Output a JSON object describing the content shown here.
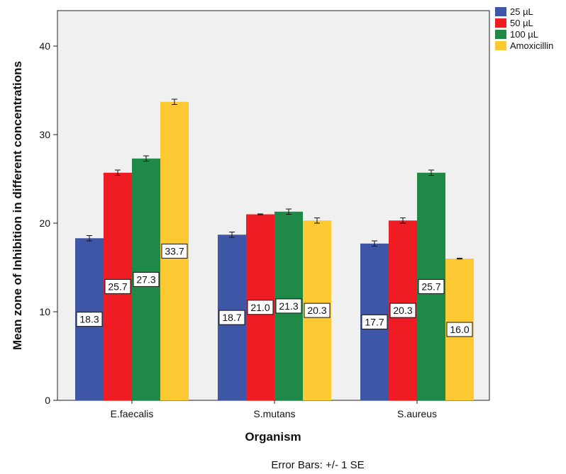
{
  "chart_data": {
    "type": "bar",
    "xlabel": "Organism",
    "ylabel": "Mean zone of Inhibition in different concentrations",
    "categories": [
      "E.faecalis",
      "S.mutans",
      "S.aureus"
    ],
    "ylim": [
      0,
      45
    ],
    "yticks": [
      "0",
      "10",
      "20",
      "30",
      "40"
    ],
    "series": [
      {
        "name": "25 µL",
        "color": "#3f56a6",
        "values": [
          18.3,
          18.7,
          17.7
        ],
        "labels": [
          "18.3",
          "18.7",
          "17.7"
        ],
        "se": [
          0.3,
          0.3,
          0.3
        ]
      },
      {
        "name": "50 µL",
        "color": "#f01c24",
        "values": [
          25.7,
          21.0,
          20.3
        ],
        "labels": [
          "25.7",
          "21.0",
          "20.3"
        ],
        "se": [
          0.3,
          0.05,
          0.3
        ]
      },
      {
        "name": "100 µL",
        "color": "#1f8a47",
        "values": [
          27.3,
          21.3,
          25.7
        ],
        "labels": [
          "27.3",
          "21.3",
          "25.7"
        ],
        "se": [
          0.3,
          0.3,
          0.3
        ]
      },
      {
        "name": "Amoxicillin",
        "color": "#fcc932",
        "values": [
          33.7,
          20.3,
          16.0
        ],
        "labels": [
          "33.7",
          "20.3",
          "16.0"
        ],
        "se": [
          0.3,
          0.3,
          0.05
        ]
      }
    ],
    "legend": "top-right",
    "footnote": "Error Bars: +/- 1 SE",
    "plot_background": "#f0f0f0"
  }
}
